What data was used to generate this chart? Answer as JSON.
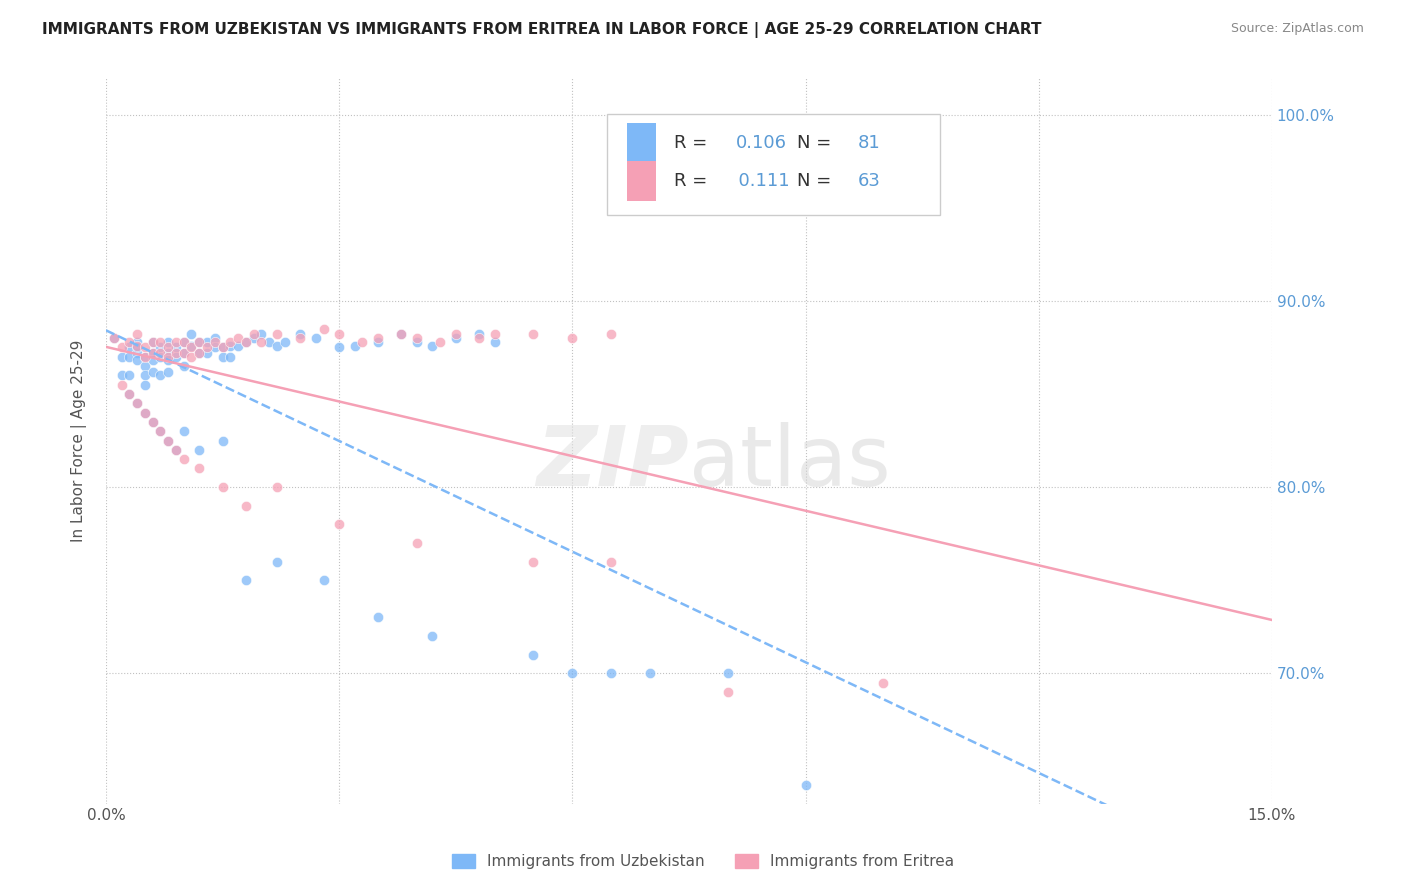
{
  "title": "IMMIGRANTS FROM UZBEKISTAN VS IMMIGRANTS FROM ERITREA IN LABOR FORCE | AGE 25-29 CORRELATION CHART",
  "source": "Source: ZipAtlas.com",
  "ylabel": "In Labor Force | Age 25-29",
  "xlim": [
    0.0,
    0.15
  ],
  "ylim": [
    0.63,
    1.02
  ],
  "color_uzbekistan": "#7EB8F7",
  "color_eritrea": "#F5A0B5",
  "R_uzbekistan": 0.106,
  "N_uzbekistan": 81,
  "R_eritrea": 0.111,
  "N_eritrea": 63,
  "uzbekistan_x": [
    0.001,
    0.002,
    0.002,
    0.003,
    0.003,
    0.003,
    0.004,
    0.004,
    0.004,
    0.004,
    0.005,
    0.005,
    0.005,
    0.005,
    0.006,
    0.006,
    0.006,
    0.006,
    0.007,
    0.007,
    0.007,
    0.008,
    0.008,
    0.008,
    0.008,
    0.009,
    0.009,
    0.01,
    0.01,
    0.01,
    0.011,
    0.011,
    0.012,
    0.012,
    0.013,
    0.013,
    0.014,
    0.014,
    0.015,
    0.015,
    0.016,
    0.016,
    0.017,
    0.018,
    0.019,
    0.02,
    0.021,
    0.022,
    0.023,
    0.025,
    0.027,
    0.03,
    0.032,
    0.035,
    0.038,
    0.04,
    0.042,
    0.045,
    0.048,
    0.05,
    0.003,
    0.004,
    0.005,
    0.006,
    0.007,
    0.008,
    0.009,
    0.01,
    0.012,
    0.015,
    0.018,
    0.022,
    0.028,
    0.035,
    0.042,
    0.055,
    0.06,
    0.065,
    0.07,
    0.08,
    0.09
  ],
  "uzbekistan_y": [
    0.88,
    0.87,
    0.86,
    0.875,
    0.87,
    0.86,
    0.872,
    0.868,
    0.878,
    0.875,
    0.87,
    0.865,
    0.86,
    0.855,
    0.878,
    0.872,
    0.868,
    0.862,
    0.875,
    0.87,
    0.86,
    0.878,
    0.872,
    0.868,
    0.862,
    0.875,
    0.87,
    0.878,
    0.872,
    0.865,
    0.882,
    0.876,
    0.878,
    0.872,
    0.878,
    0.872,
    0.88,
    0.875,
    0.875,
    0.87,
    0.876,
    0.87,
    0.876,
    0.878,
    0.88,
    0.882,
    0.878,
    0.876,
    0.878,
    0.882,
    0.88,
    0.875,
    0.876,
    0.878,
    0.882,
    0.878,
    0.876,
    0.88,
    0.882,
    0.878,
    0.85,
    0.845,
    0.84,
    0.835,
    0.83,
    0.825,
    0.82,
    0.83,
    0.82,
    0.825,
    0.75,
    0.76,
    0.75,
    0.73,
    0.72,
    0.71,
    0.7,
    0.7,
    0.7,
    0.7,
    0.64
  ],
  "eritrea_x": [
    0.001,
    0.002,
    0.003,
    0.004,
    0.004,
    0.005,
    0.005,
    0.006,
    0.006,
    0.007,
    0.007,
    0.008,
    0.008,
    0.009,
    0.009,
    0.01,
    0.01,
    0.011,
    0.011,
    0.012,
    0.012,
    0.013,
    0.014,
    0.015,
    0.016,
    0.017,
    0.018,
    0.019,
    0.02,
    0.022,
    0.025,
    0.028,
    0.03,
    0.033,
    0.035,
    0.038,
    0.04,
    0.043,
    0.045,
    0.048,
    0.05,
    0.055,
    0.06,
    0.065,
    0.002,
    0.003,
    0.004,
    0.005,
    0.006,
    0.007,
    0.008,
    0.009,
    0.01,
    0.012,
    0.015,
    0.018,
    0.022,
    0.03,
    0.04,
    0.055,
    0.065,
    0.08,
    0.1
  ],
  "eritrea_y": [
    0.88,
    0.875,
    0.878,
    0.882,
    0.876,
    0.875,
    0.87,
    0.878,
    0.872,
    0.878,
    0.872,
    0.875,
    0.87,
    0.878,
    0.872,
    0.878,
    0.872,
    0.875,
    0.87,
    0.878,
    0.872,
    0.875,
    0.878,
    0.875,
    0.878,
    0.88,
    0.878,
    0.882,
    0.878,
    0.882,
    0.88,
    0.885,
    0.882,
    0.878,
    0.88,
    0.882,
    0.88,
    0.878,
    0.882,
    0.88,
    0.882,
    0.882,
    0.88,
    0.882,
    0.855,
    0.85,
    0.845,
    0.84,
    0.835,
    0.83,
    0.825,
    0.82,
    0.815,
    0.81,
    0.8,
    0.79,
    0.8,
    0.78,
    0.77,
    0.76,
    0.76,
    0.69,
    0.695
  ]
}
